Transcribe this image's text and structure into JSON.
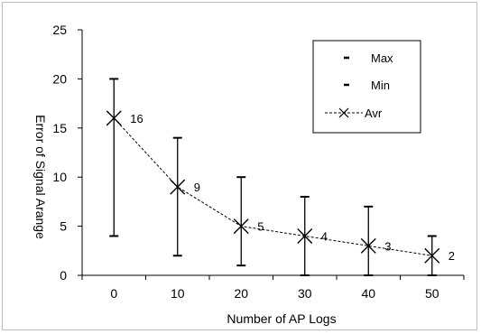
{
  "chart_data": {
    "type": "line",
    "xlabel": "Number of AP Logs",
    "ylabel": "Error of Signal Arange",
    "categories": [
      "0",
      "10",
      "20",
      "30",
      "40",
      "50"
    ],
    "ylim": [
      0,
      25
    ],
    "yticks": [
      "0",
      "5",
      "10",
      "15",
      "20",
      "25"
    ],
    "grid": false,
    "legend_position": "top-right",
    "series": [
      {
        "name": "Max",
        "values": [
          20,
          14,
          10,
          8,
          7,
          4
        ]
      },
      {
        "name": "Min",
        "values": [
          4,
          2,
          1,
          0,
          0,
          0
        ]
      },
      {
        "name": "Avr",
        "values": [
          16,
          9,
          5,
          4,
          3,
          2
        ]
      }
    ],
    "data_labels": [
      "16",
      "9",
      "5",
      "4",
      "3",
      "2"
    ]
  }
}
